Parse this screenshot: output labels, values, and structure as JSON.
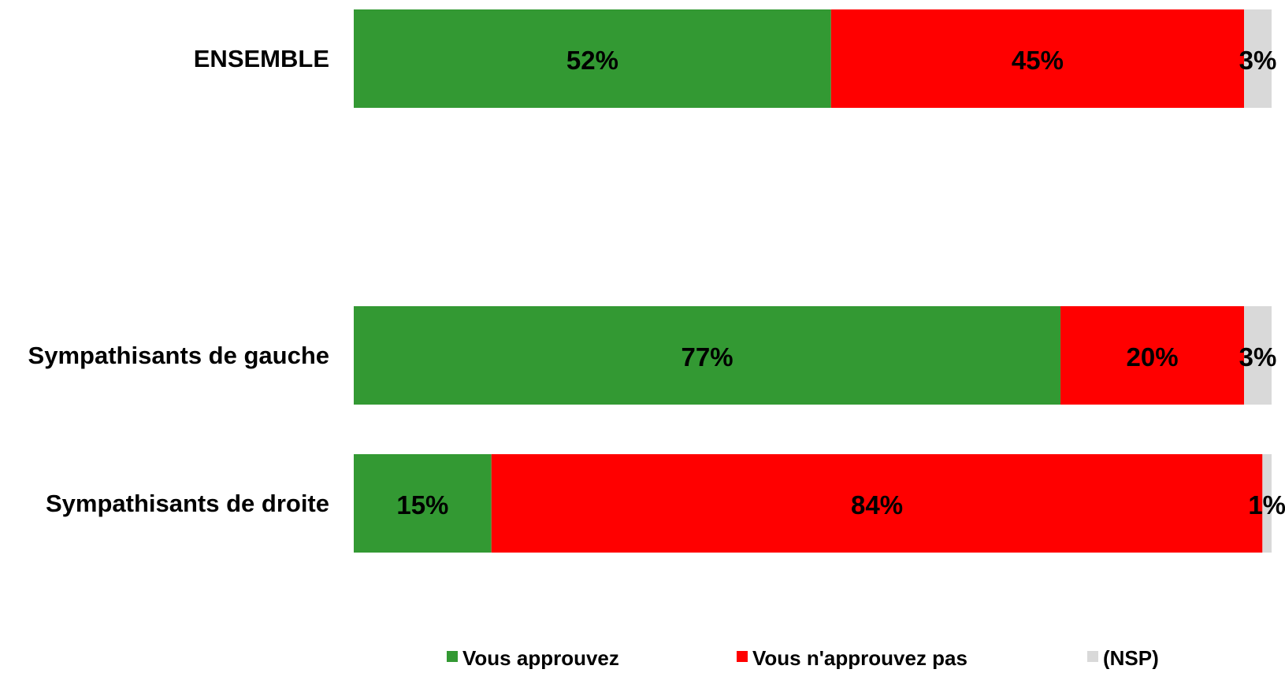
{
  "chart_data": {
    "type": "bar",
    "orientation": "horizontal",
    "stacked": "percent",
    "categories": [
      "ENSEMBLE",
      "Sympathisants de gauche",
      "Sympathisants de droite"
    ],
    "series": [
      {
        "name": "Vous approuvez",
        "values": [
          52,
          77,
          15
        ],
        "labels": [
          "52%",
          "77%",
          "15%"
        ],
        "color": "#339933"
      },
      {
        "name": "Vous n'approuvez pas",
        "values": [
          45,
          20,
          84
        ],
        "labels": [
          "45%",
          "20%",
          "84%"
        ],
        "color": "#ff0000"
      },
      {
        "name": "(NSP)",
        "values": [
          3,
          3,
          1
        ],
        "labels": [
          "3%",
          "3%",
          "1%"
        ],
        "color": "#d9d9d9"
      }
    ],
    "xlim": [
      0,
      100
    ],
    "legend_position": "bottom",
    "grid": false,
    "title": "",
    "xlabel": "",
    "ylabel": ""
  }
}
